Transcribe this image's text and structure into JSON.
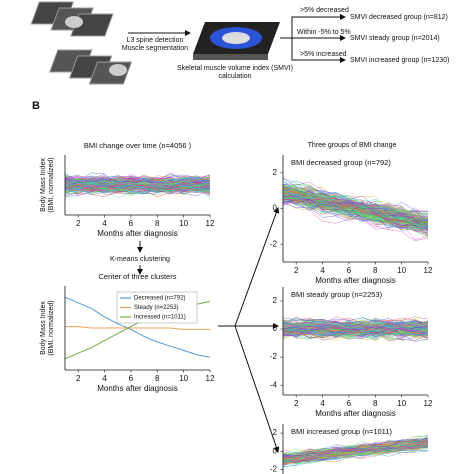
{
  "panel_a": {
    "steps": [
      "L3 spine detection",
      "Muscle segmentation"
    ],
    "calc": [
      "Skeletal muscle volume index (SMVI)",
      "calculation"
    ],
    "criteria": [
      ">5% decreased",
      "Within -5% to 5%",
      ">5% increased"
    ],
    "groups": [
      "SMVI decreased group (n=812)",
      "SMVI steady group (n=2014)",
      "SMVI increased group (n=1230)"
    ]
  },
  "panel_b": {
    "label": "B",
    "right_title": "Three groups of BMI change",
    "kmeans": "K-means clustering",
    "charts": [
      {
        "type": "spaghetti",
        "title": "BMI change over time (n=4056 )",
        "y_label": [
          "Body Mass Index",
          "(BMI, normalized)"
        ],
        "x_label": "Months after diagnosis",
        "xlim": [
          1,
          12
        ],
        "xticks": [
          2,
          4,
          6,
          8,
          10,
          12
        ],
        "ylim": [
          -3,
          3
        ]
      },
      {
        "type": "line",
        "title": "Center of three clusters",
        "y_label": [
          "Body Mass Index",
          "(BMI, normalized)"
        ],
        "x_label": "Months after diagnosis",
        "x": [
          1,
          2,
          3,
          4,
          5,
          6,
          7,
          8,
          9,
          10,
          11,
          12
        ],
        "xlim": [
          1,
          12
        ],
        "xticks": [
          2,
          4,
          6,
          8,
          10,
          12
        ],
        "ylim": [
          -1.5,
          1.5
        ],
        "series": [
          {
            "name": "Decreased (n=792)",
            "color": "#5b9bd5",
            "values": [
              1.1,
              0.9,
              0.7,
              0.4,
              0.15,
              -0.05,
              -0.3,
              -0.5,
              -0.65,
              -0.8,
              -0.95,
              -1.05
            ]
          },
          {
            "name": "Steady (n=2253)",
            "color": "#f0a35a",
            "values": [
              0.05,
              0.05,
              0.0,
              0.0,
              0.0,
              0.0,
              0.0,
              0.0,
              0.0,
              -0.05,
              -0.05,
              -0.05
            ]
          },
          {
            "name": "Increased (n=1011)",
            "color": "#70ad47",
            "values": [
              -1.1,
              -0.9,
              -0.7,
              -0.45,
              -0.2,
              0.05,
              0.3,
              0.45,
              0.6,
              0.75,
              0.85,
              0.95
            ]
          }
        ]
      },
      {
        "type": "spaghetti",
        "title": "BMI decreased group (n=792)",
        "x_label": "Months after diagnosis",
        "xlim": [
          1,
          12
        ],
        "xticks": [
          2,
          4,
          6,
          8,
          10,
          12
        ],
        "ylim": [
          -3,
          3
        ],
        "yticks": [
          2,
          0,
          -2
        ]
      },
      {
        "type": "spaghetti",
        "title": "BMI steady group (n=2253)",
        "x_label": "Months after diagnosis",
        "xlim": [
          1,
          12
        ],
        "xticks": [
          2,
          4,
          6,
          8,
          10,
          12
        ],
        "ylim": [
          -4.7,
          3
        ],
        "yticks": [
          2,
          0,
          -2,
          -4
        ]
      },
      {
        "type": "spaghetti",
        "title": "BMI increased group (n=1011)",
        "xlim": [
          1,
          12
        ],
        "ylim": [
          -2.5,
          3
        ],
        "yticks": [
          2,
          0,
          -2
        ]
      }
    ]
  }
}
